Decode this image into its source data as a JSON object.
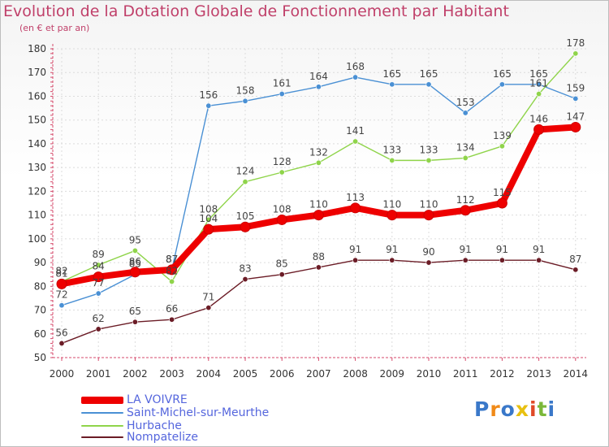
{
  "header": {
    "title": "Evolution de la Dotation Globale de Fonctionnement par Habitant",
    "subtitle": "(en € et par an)"
  },
  "colors": {
    "title": "#c0406a",
    "axis": "#d64a6b",
    "grid": "#dcdcdc",
    "legend_text": "#5566dd"
  },
  "chart_data": {
    "type": "line",
    "title": "Evolution de la Dotation Globale de Fonctionnement par Habitant",
    "subtitle": "(en € et par an)",
    "xlabel": "",
    "ylabel": "",
    "ylim": [
      50,
      180
    ],
    "yticks": [
      50,
      60,
      70,
      80,
      90,
      100,
      110,
      120,
      130,
      140,
      150,
      160,
      170,
      180
    ],
    "grid": true,
    "legend_position": "bottom-left",
    "x": [
      2000,
      2001,
      2002,
      2003,
      2004,
      2005,
      2006,
      2007,
      2008,
      2009,
      2010,
      2011,
      2012,
      2013,
      2014
    ],
    "series": [
      {
        "name": "Nompatelize",
        "color": "#6b1c26",
        "values": [
          56,
          62,
          65,
          66,
          71,
          83,
          85,
          88,
          91,
          91,
          90,
          91,
          91,
          91,
          87
        ]
      },
      {
        "name": "Saint-Michel-sur-Meurthe",
        "color": "#4a90d4",
        "values": [
          72,
          77,
          85,
          87,
          156,
          158,
          161,
          164,
          168,
          165,
          165,
          153,
          165,
          165,
          159
        ]
      },
      {
        "name": "Hurbache",
        "color": "#8fd44a",
        "values": [
          82,
          89,
          95,
          82,
          108,
          124,
          128,
          132,
          141,
          133,
          133,
          134,
          139,
          161,
          178
        ]
      },
      {
        "name": "LA VOIVRE",
        "color": "#ee0000",
        "values": [
          81,
          84,
          86,
          87,
          104,
          105,
          108,
          110,
          113,
          110,
          110,
          112,
          115,
          146,
          147
        ]
      }
    ]
  },
  "legend": [
    {
      "name": "LA VOIVRE",
      "color": "#ee0000"
    },
    {
      "name": "Saint-Michel-sur-Meurthe",
      "color": "#4a90d4"
    },
    {
      "name": "Hurbache",
      "color": "#8fd44a"
    },
    {
      "name": "Nompatelize",
      "color": "#6b1c26"
    }
  ],
  "logo": {
    "letters": [
      "P",
      "r",
      "o",
      "x",
      "i",
      "t",
      "i"
    ],
    "colors": [
      "#3a78c9",
      "#f08a18",
      "#3a78c9",
      "#e8c010",
      "#e04a28",
      "#7bb83a",
      "#3a78c9"
    ]
  }
}
